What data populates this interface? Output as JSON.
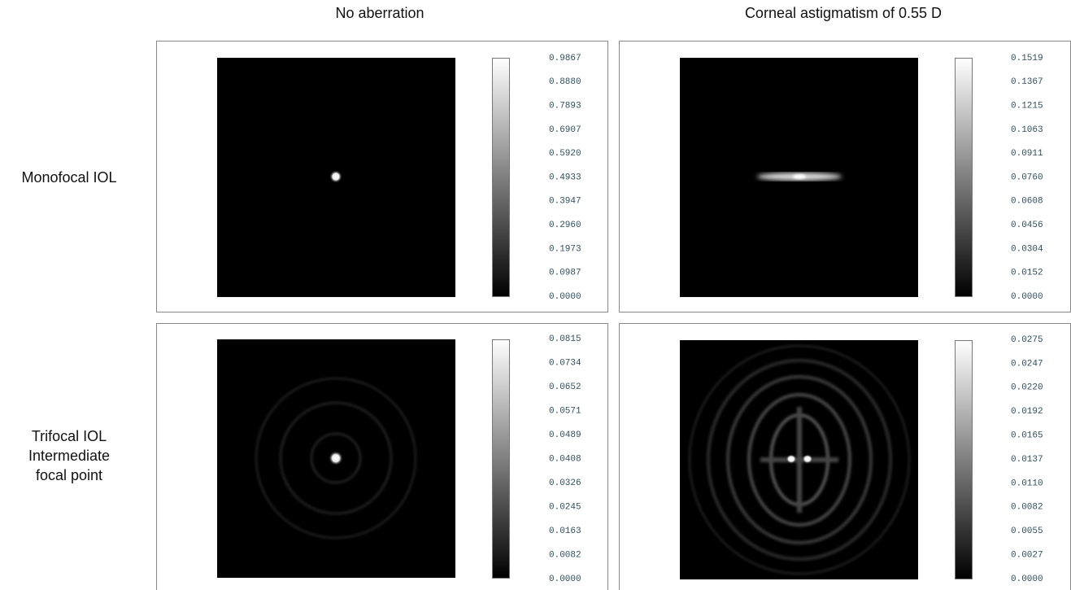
{
  "column_titles": [
    "No aberration",
    "Corneal astigmatism of 0.55 D"
  ],
  "row_labels": [
    [
      "Monofocal IOL"
    ],
    [
      "Trifocal IOL",
      "Intermediate",
      "focal point"
    ]
  ],
  "panels": [
    {
      "colorbar_labels": [
        "0.9867",
        "0.8880",
        "0.7893",
        "0.6907",
        "0.5920",
        "0.4933",
        "0.3947",
        "0.2960",
        "0.1973",
        "0.0987",
        "0.0000"
      ]
    },
    {
      "colorbar_labels": [
        "0.1519",
        "0.1367",
        "0.1215",
        "0.1063",
        "0.0911",
        "0.0760",
        "0.0608",
        "0.0456",
        "0.0304",
        "0.0152",
        "0.0000"
      ]
    },
    {
      "colorbar_labels": [
        "0.0815",
        "0.0734",
        "0.0652",
        "0.0571",
        "0.0489",
        "0.0408",
        "0.0326",
        "0.0245",
        "0.0163",
        "0.0082",
        "0.0000"
      ]
    },
    {
      "colorbar_labels": [
        "0.0275",
        "0.0247",
        "0.0220",
        "0.0192",
        "0.0165",
        "0.0137",
        "0.0110",
        "0.0082",
        "0.0055",
        "0.0027",
        "0.0000"
      ]
    }
  ]
}
